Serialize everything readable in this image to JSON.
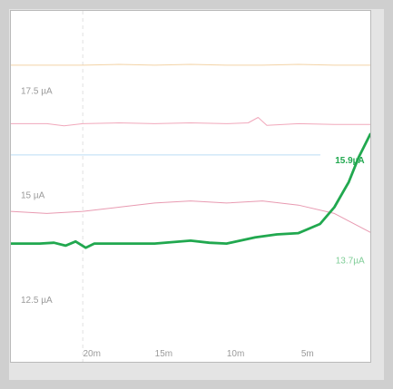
{
  "chart_data": {
    "type": "line",
    "title": "",
    "xlabel": "",
    "ylabel": "",
    "x_unit": "minutes ago",
    "x_ticks": [
      "20m",
      "15m",
      "10m",
      "5m"
    ],
    "x_tick_values": [
      -20,
      -15,
      -10,
      -5
    ],
    "xlim": [
      -25,
      0
    ],
    "y_ticks": [
      "17.5 µA",
      "15 µA",
      "12.5 µA"
    ],
    "y_tick_values": [
      17.5,
      15,
      12.5
    ],
    "ylim": [
      11.0,
      19.4
    ],
    "grid": "vertical dashed",
    "series": [
      {
        "color": "#f2ce9c",
        "width": 1,
        "opacity": 0.9,
        "x": [
          -25,
          -20,
          -17.5,
          -15,
          -12.5,
          -10,
          -7.5,
          -5,
          -2.5,
          0
        ],
        "values": [
          18.1,
          18.1,
          18.12,
          18.1,
          18.12,
          18.1,
          18.1,
          18.12,
          18.1,
          18.1
        ]
      },
      {
        "color": "#ef9fb4",
        "width": 1,
        "opacity": 0.9,
        "x": [
          -25,
          -22.5,
          -21.3,
          -20,
          -17.5,
          -15,
          -12.5,
          -10,
          -8.5,
          -7.8,
          -7.2,
          -5,
          -2.5,
          0
        ],
        "values": [
          16.7,
          16.7,
          16.65,
          16.7,
          16.72,
          16.7,
          16.72,
          16.7,
          16.72,
          16.85,
          16.66,
          16.7,
          16.68,
          16.68
        ]
      },
      {
        "color": "#b4d8f4",
        "width": 1,
        "opacity": 0.9,
        "x": [
          -25,
          -20,
          -15,
          -10,
          -5,
          -3.5
        ],
        "values": [
          15.95,
          15.95,
          15.95,
          15.95,
          15.95,
          15.95
        ]
      },
      {
        "color": "#e68fa9",
        "width": 1,
        "opacity": 0.9,
        "x": [
          -25,
          -22.5,
          -20,
          -17.5,
          -15,
          -12.5,
          -10,
          -7.5,
          -5,
          -2.5,
          0
        ],
        "values": [
          14.6,
          14.55,
          14.6,
          14.7,
          14.8,
          14.85,
          14.8,
          14.85,
          14.75,
          14.55,
          14.1
        ]
      },
      {
        "color": "#21a84f",
        "width": 2.8,
        "opacity": 1,
        "x": [
          -25,
          -23.0,
          -22.0,
          -21.2,
          -20.5,
          -19.8,
          -19.2,
          -18.0,
          -15.0,
          -12.5,
          -11.2,
          -10.0,
          -8.0,
          -6.5,
          -5.0,
          -3.5,
          -2.5,
          -1.5,
          -0.8,
          0
        ],
        "values": [
          13.83,
          13.83,
          13.85,
          13.78,
          13.88,
          13.73,
          13.83,
          13.83,
          13.83,
          13.9,
          13.85,
          13.83,
          13.98,
          14.05,
          14.08,
          14.3,
          14.7,
          15.3,
          15.9,
          16.45
        ]
      }
    ],
    "labels": [
      {
        "text": "15.9µA",
        "color": "#21a84f",
        "x": -0.4,
        "y": 15.75,
        "bold": true
      },
      {
        "text": "13.7µA",
        "color": "#7fcd97",
        "x": -0.4,
        "y": 13.35,
        "bold": false
      }
    ]
  }
}
